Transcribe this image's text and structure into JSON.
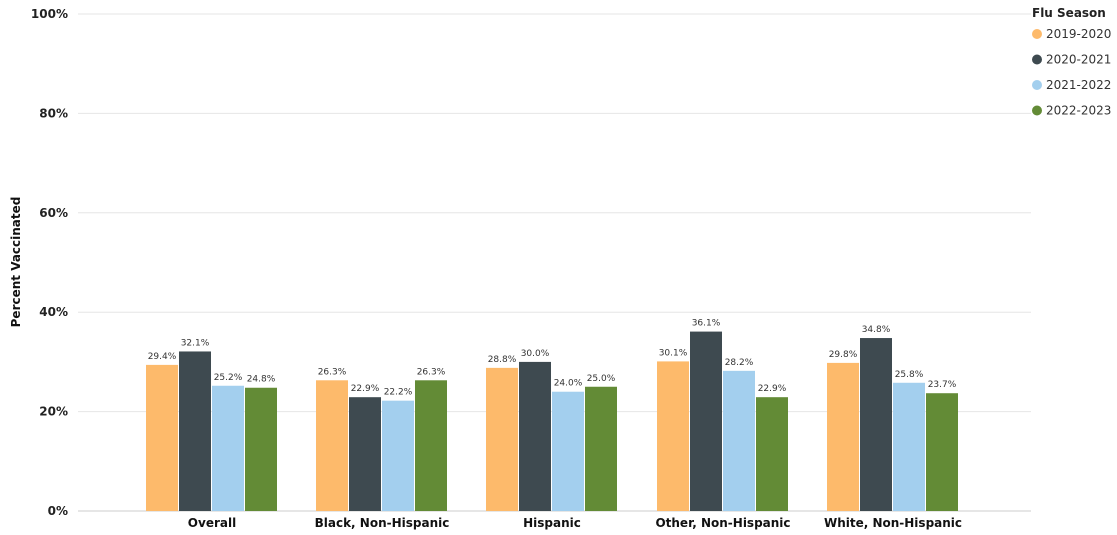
{
  "chart_data": {
    "type": "bar",
    "ylabel": "Percent Vaccinated",
    "ylim": [
      0,
      100
    ],
    "yticks": [
      {
        "value": 0,
        "label": "0%"
      },
      {
        "value": 20,
        "label": "20%"
      },
      {
        "value": 40,
        "label": "40%"
      },
      {
        "value": 60,
        "label": "60%"
      },
      {
        "value": 80,
        "label": "80%"
      },
      {
        "value": 100,
        "label": "100%"
      }
    ],
    "grid": true,
    "categories": [
      "Overall",
      "Black, Non-Hispanic",
      "Hispanic",
      "Other, Non-Hispanic",
      "White, Non-Hispanic"
    ],
    "legend": {
      "title": "Flu Season",
      "placement": "top-right"
    },
    "series": [
      {
        "name": "2019-2020",
        "color": "#FDBA6B",
        "values": [
          29.4,
          26.3,
          28.8,
          30.1,
          29.8
        ],
        "labels": [
          "29.4%",
          "26.3%",
          "28.8%",
          "30.1%",
          "29.8%"
        ]
      },
      {
        "name": "2020-2021",
        "color": "#3E4A50",
        "values": [
          32.1,
          22.9,
          30.0,
          36.1,
          34.8
        ],
        "labels": [
          "32.1%",
          "22.9%",
          "30.0%",
          "36.1%",
          "34.8%"
        ]
      },
      {
        "name": "2021-2022",
        "color": "#A3CFEE",
        "values": [
          25.2,
          22.2,
          24.0,
          28.2,
          25.8
        ],
        "labels": [
          "25.2%",
          "22.2%",
          "24.0%",
          "28.2%",
          "25.8%"
        ]
      },
      {
        "name": "2022-2023",
        "color": "#638B36",
        "values": [
          24.8,
          26.3,
          25.0,
          22.9,
          23.7
        ],
        "labels": [
          "24.8%",
          "26.3%",
          "25.0%",
          "22.9%",
          "23.7%"
        ]
      }
    ]
  }
}
